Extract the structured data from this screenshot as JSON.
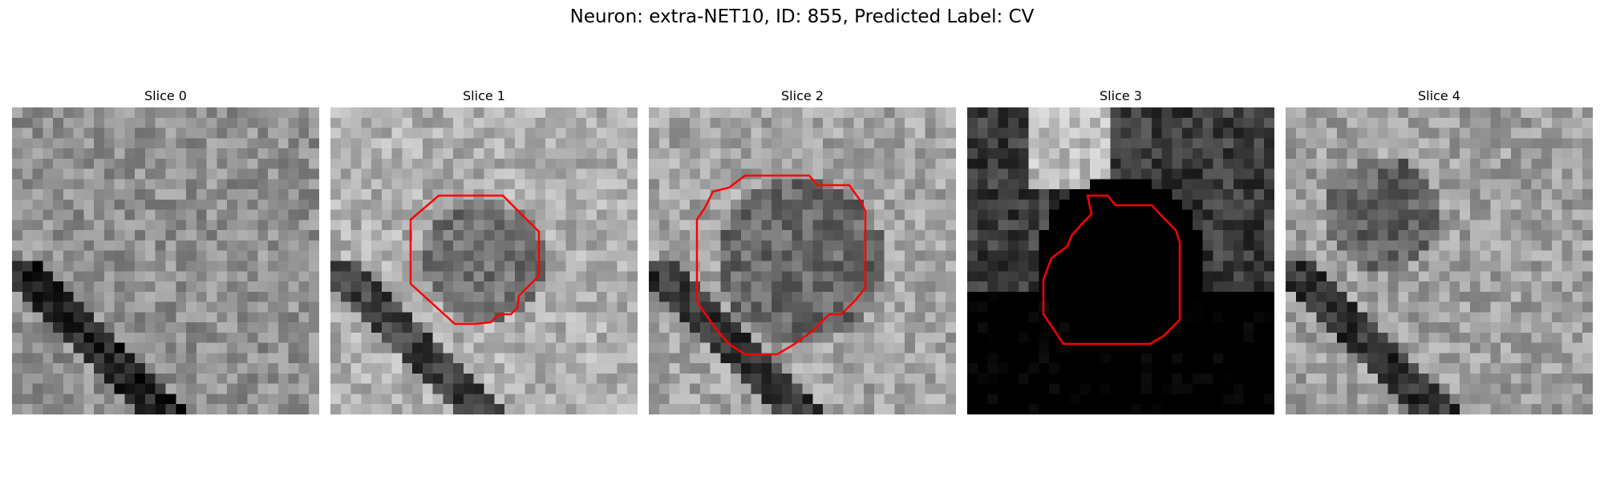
{
  "title": "Neuron: extra-NET10, ID: 855, Predicted Label: CV",
  "contour_color": "#ff0000",
  "slices": [
    {
      "label": "Slice 0",
      "seed": 11,
      "base": 145,
      "has_contour": false
    },
    {
      "label": "Slice 1",
      "seed": 23,
      "base": 175,
      "has_contour": true
    },
    {
      "label": "Slice 2",
      "seed": 37,
      "base": 165,
      "has_contour": true
    },
    {
      "label": "Slice 3",
      "seed": 51,
      "base": 60,
      "has_contour": true
    },
    {
      "label": "Slice 4",
      "seed": 67,
      "base": 160,
      "has_contour": false
    }
  ]
}
